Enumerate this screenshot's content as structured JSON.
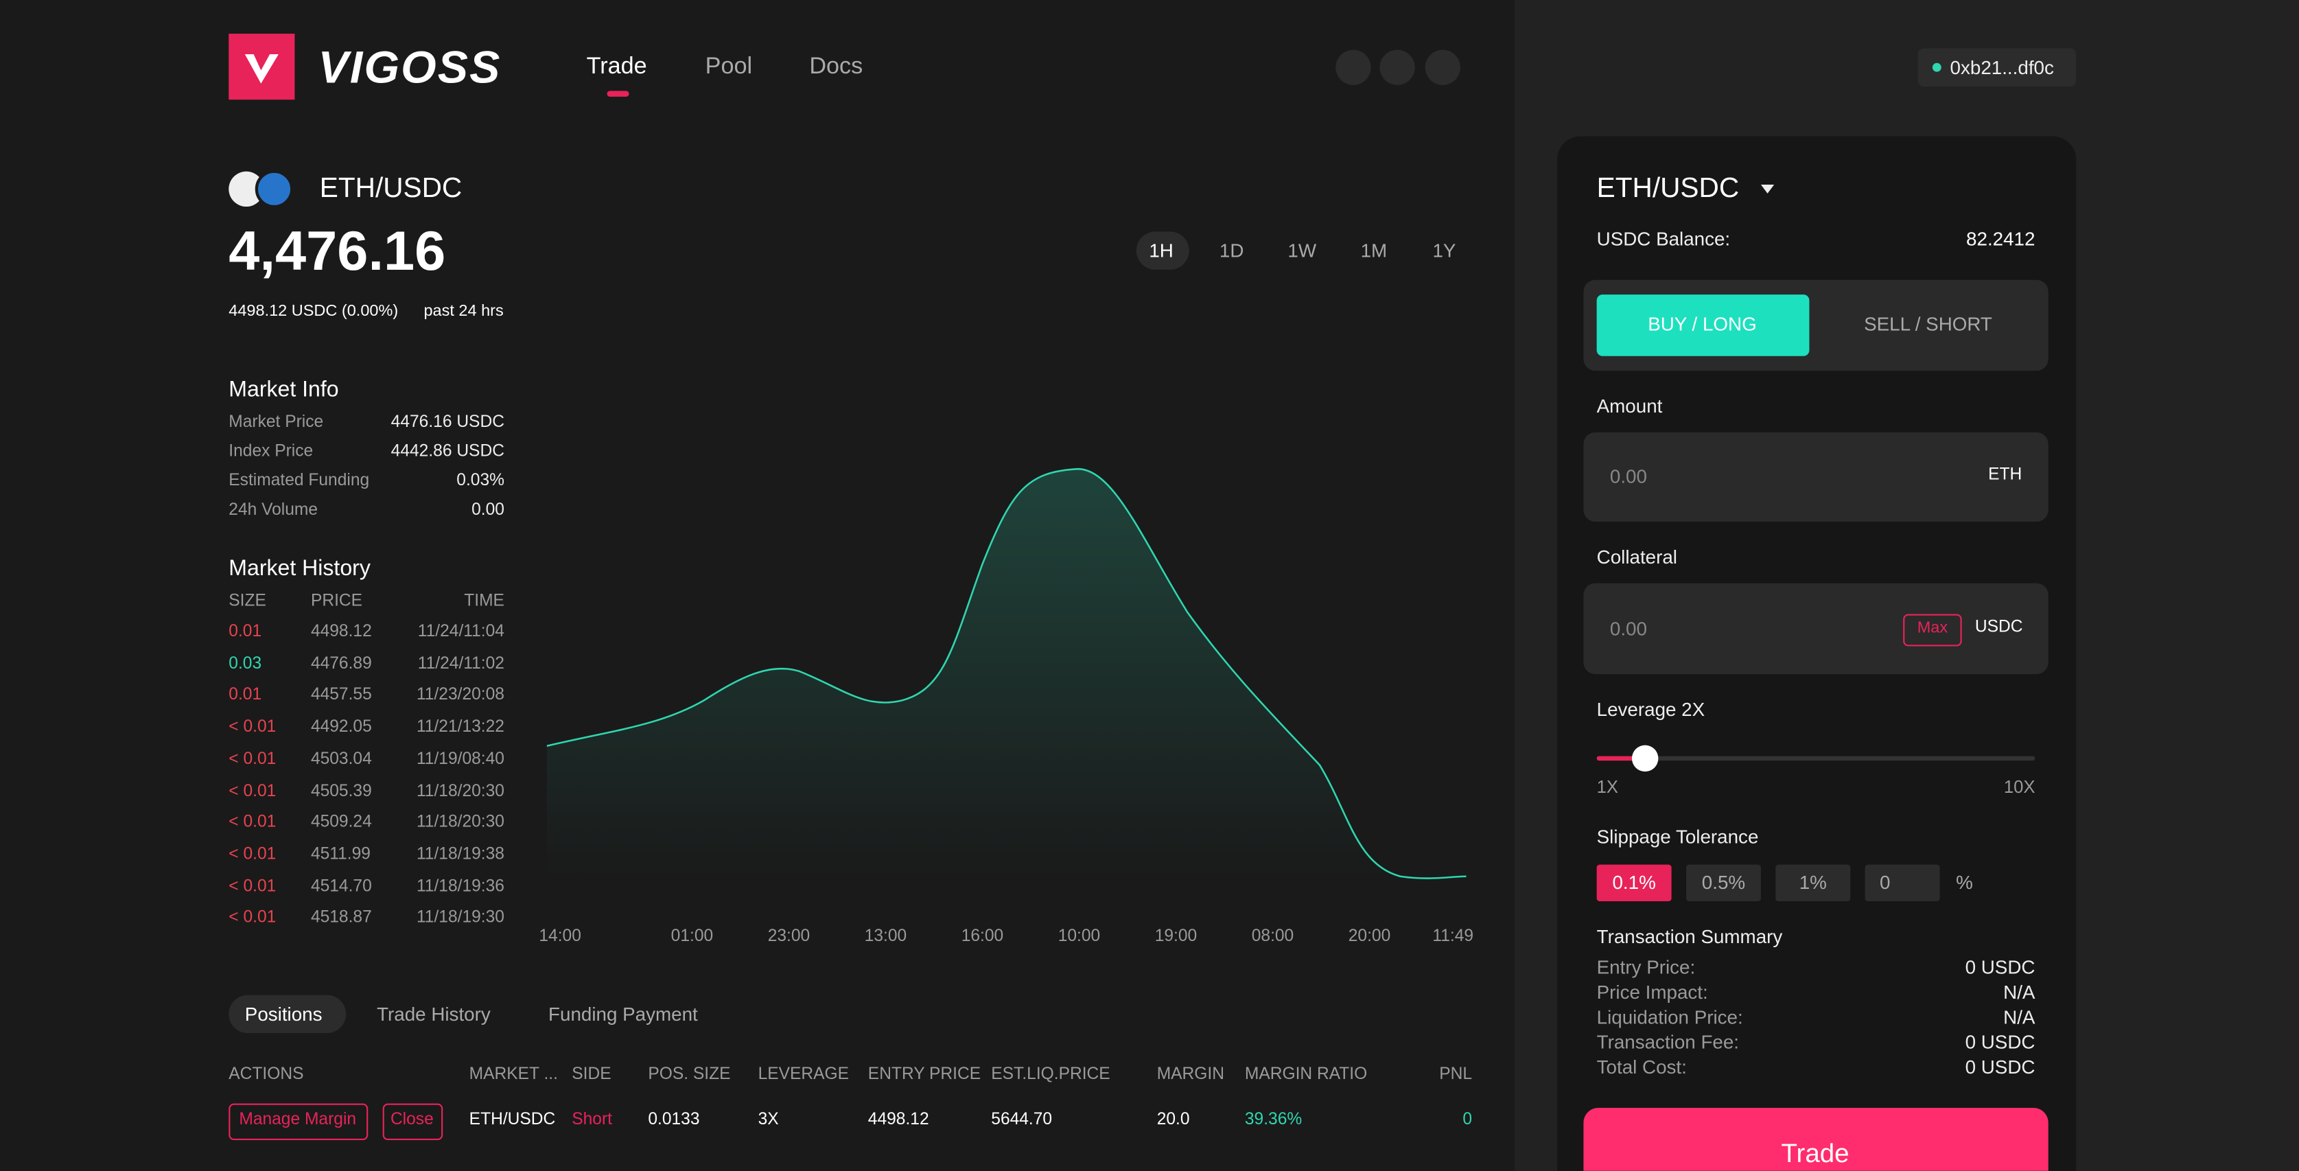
{
  "header": {
    "logo": "VIGOSS",
    "nav": [
      "Trade",
      "Pool",
      "Docs"
    ],
    "wallet": "0xb21...df0c"
  },
  "market": {
    "pair": "ETH/USDC",
    "price": "4,476.16",
    "change": "4498.12 USDC (0.00%)",
    "period": "past 24 hrs",
    "ranges": [
      "1H",
      "1D",
      "1W",
      "1M",
      "1Y"
    ]
  },
  "market_info": {
    "title": "Market Info",
    "rows": [
      [
        "Market Price",
        "4476.16 USDC"
      ],
      [
        "Index Price",
        "4442.86 USDC"
      ],
      [
        "Estimated Funding",
        "0.03%"
      ],
      [
        "24h Volume",
        "0.00"
      ]
    ]
  },
  "market_history": {
    "title": "Market History",
    "headers": [
      "SIZE",
      "PRICE",
      "TIME"
    ],
    "rows": [
      [
        "0.01",
        "4498.12",
        "11/24/11:04"
      ],
      [
        "0.03",
        "4476.89",
        "11/24/11:02"
      ],
      [
        "0.01",
        "4457.55",
        "11/23/20:08"
      ],
      [
        "< 0.01",
        "4492.05",
        "11/21/13:22"
      ],
      [
        "< 0.01",
        "4503.04",
        "11/19/08:40"
      ],
      [
        "< 0.01",
        "4505.39",
        "11/18/20:30"
      ],
      [
        "< 0.01",
        "4509.24",
        "11/18/20:30"
      ],
      [
        "< 0.01",
        "4511.99",
        "11/18/19:38"
      ],
      [
        "< 0.01",
        "4514.70",
        "11/18/19:36"
      ],
      [
        "< 0.01",
        "4518.87",
        "11/18/19:30"
      ]
    ]
  },
  "chart": {
    "x_labels": [
      "14:00",
      "01:00",
      "23:00",
      "13:00",
      "16:00",
      "10:00",
      "19:00",
      "08:00",
      "20:00",
      "11:49"
    ]
  },
  "positions": {
    "tabs": [
      "Positions",
      "Trade History",
      "Funding Payment"
    ],
    "headers": [
      "ACTIONS",
      "MARKET ...",
      "SIDE",
      "POS. SIZE",
      "LEVERAGE",
      "ENTRY PRICE",
      "EST.LIQ.PRICE",
      "MARGIN",
      "MARGIN RATIO",
      "PNL"
    ],
    "actions": [
      "Manage Margin",
      "Close"
    ],
    "row": [
      "ETH/USDC",
      "Short",
      "0.0133",
      "3X",
      "4498.12",
      "5644.70",
      "20.0",
      "39.36%",
      "0"
    ]
  },
  "trade_panel": {
    "pair": "ETH/USDC",
    "balance_label": "USDC Balance:",
    "balance": "82.2412",
    "buy": "BUY / LONG",
    "sell": "SELL / SHORT",
    "amount_label": "Amount",
    "amount": "0.00",
    "amount_unit": "ETH",
    "collateral_label": "Collateral",
    "collateral": "0.00",
    "max": "Max",
    "collateral_unit": "USDC",
    "leverage_label": "Leverage 2X",
    "leverage_min": "1X",
    "leverage_max": "10X",
    "slippage_label": "Slippage Tolerance",
    "slippage_options": [
      "0.1%",
      "0.5%",
      "1%",
      "0"
    ],
    "slippage_unit": "%",
    "summary_title": "Transaction Summary",
    "summary": [
      [
        "Entry Price:",
        "0 USDC"
      ],
      [
        "Price Impact:",
        "N/A"
      ],
      [
        "Liquidation Price:",
        "N/A"
      ],
      [
        "Transaction Fee:",
        "0 USDC"
      ],
      [
        "Total Cost:",
        "0 USDC"
      ]
    ],
    "button": "Trade"
  }
}
